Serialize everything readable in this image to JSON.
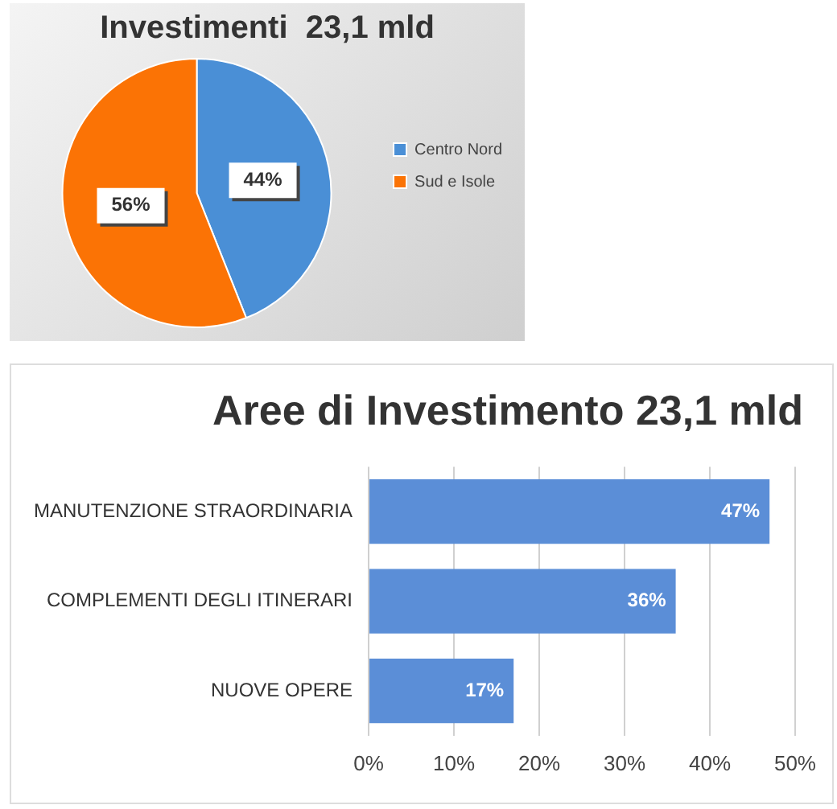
{
  "chart_data": [
    {
      "type": "pie",
      "title": "Investimenti  23,1 mld",
      "categories": [
        "Centro Nord",
        "Sud e Isole"
      ],
      "values": [
        44,
        56
      ],
      "colors": [
        "#4a8fd6",
        "#fb7305"
      ],
      "value_labels": [
        "44%",
        "56%"
      ],
      "legend": "right"
    },
    {
      "type": "bar",
      "orientation": "horizontal",
      "title": "Aree di Investimento 23,1 mld",
      "categories": [
        "MANUTENZIONE STRAORDINARIA",
        "COMPLEMENTI DEGLI ITINERARI",
        "NUOVE OPERE"
      ],
      "values": [
        47,
        36,
        17
      ],
      "color": "#5b8ed7",
      "value_labels": [
        "47%",
        "36%",
        "17%"
      ],
      "xlim": [
        0,
        50
      ],
      "xticks": [
        {
          "value": 0,
          "label": "0%"
        },
        {
          "value": 10,
          "label": "10%"
        },
        {
          "value": 20,
          "label": "20%"
        },
        {
          "value": 30,
          "label": "30%"
        },
        {
          "value": 40,
          "label": "40%"
        },
        {
          "value": 50,
          "label": "50%"
        }
      ],
      "grid": "x"
    }
  ]
}
